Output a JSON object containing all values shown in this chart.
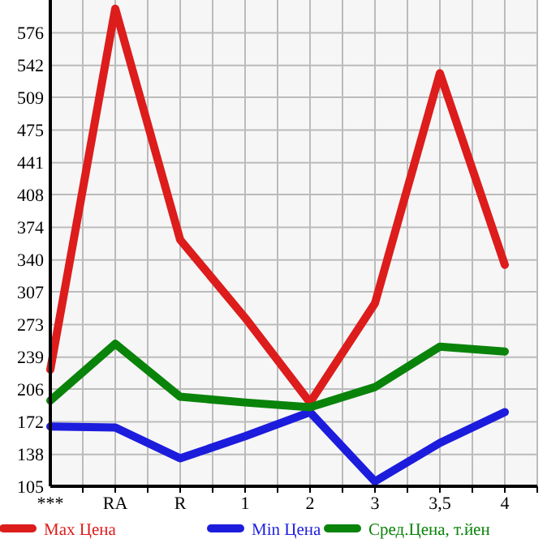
{
  "chart_data": {
    "type": "line",
    "categories": [
      "***",
      "RA",
      "R",
      "1",
      "2",
      "3",
      "3,5",
      "4"
    ],
    "ylim": [
      105,
      610
    ],
    "yticks": [
      105,
      138,
      172,
      206,
      239,
      273,
      307,
      340,
      374,
      408,
      441,
      475,
      509,
      542,
      576
    ],
    "grid": true,
    "legend": "bottom",
    "marker": "none",
    "line_style": "solid",
    "series": [
      {
        "name": "Max Цена",
        "color": "#dd1c1c",
        "values": [
          226,
          601,
          361,
          280,
          192,
          295,
          534,
          335
        ]
      },
      {
        "name": "Min Цена",
        "color": "#1c1cdd",
        "values": [
          167,
          166,
          134,
          157,
          182,
          110,
          150,
          182
        ]
      },
      {
        "name": "Сред.Цена, т.йен",
        "color": "#0a830a",
        "values": [
          194,
          253,
          198,
          192,
          187,
          208,
          250,
          245
        ]
      }
    ]
  }
}
